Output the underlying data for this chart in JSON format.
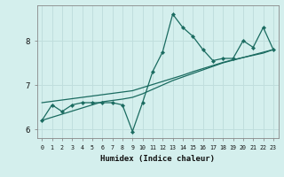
{
  "xlabel": "Humidex (Indice chaleur)",
  "background_color": "#d4efed",
  "grid_color": "#c0dedd",
  "line_color": "#1a6b60",
  "x_data": [
    0,
    1,
    2,
    3,
    4,
    5,
    6,
    7,
    8,
    9,
    10,
    11,
    12,
    13,
    14,
    15,
    16,
    17,
    18,
    19,
    20,
    21,
    22,
    23
  ],
  "y_zigzag": [
    6.2,
    6.55,
    6.4,
    6.55,
    6.6,
    6.6,
    6.6,
    6.6,
    6.55,
    5.95,
    6.6,
    7.3,
    7.75,
    8.6,
    8.3,
    8.1,
    7.8,
    7.55,
    7.6,
    7.6,
    8.0,
    7.85,
    8.3,
    7.8
  ],
  "y_linear1": [
    6.2,
    6.27,
    6.34,
    6.41,
    6.48,
    6.55,
    6.62,
    6.65,
    6.68,
    6.72,
    6.8,
    6.9,
    7.0,
    7.1,
    7.18,
    7.26,
    7.34,
    7.42,
    7.5,
    7.56,
    7.62,
    7.68,
    7.74,
    7.8
  ],
  "y_linear2": [
    6.6,
    6.63,
    6.66,
    6.69,
    6.72,
    6.75,
    6.78,
    6.81,
    6.84,
    6.87,
    6.94,
    7.01,
    7.08,
    7.15,
    7.22,
    7.3,
    7.37,
    7.44,
    7.51,
    7.57,
    7.62,
    7.67,
    7.72,
    7.8
  ],
  "ylim": [
    5.8,
    8.8
  ],
  "xlim": [
    -0.5,
    23.5
  ],
  "yticks": [
    6,
    7,
    8
  ],
  "xticks": [
    0,
    1,
    2,
    3,
    4,
    5,
    6,
    7,
    8,
    9,
    10,
    11,
    12,
    13,
    14,
    15,
    16,
    17,
    18,
    19,
    20,
    21,
    22,
    23
  ]
}
